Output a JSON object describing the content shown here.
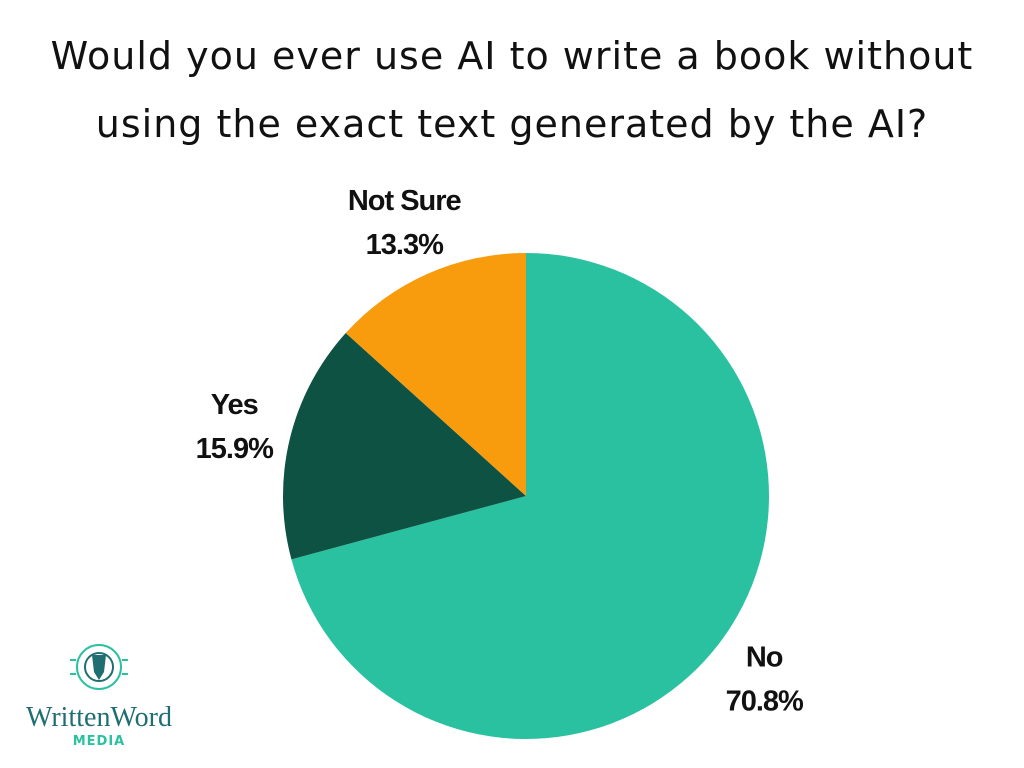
{
  "chart_data": {
    "type": "pie",
    "title": "Would you ever use AI to write a book without using the exact text generated by the AI?",
    "categories": [
      "No",
      "Yes",
      "Not Sure"
    ],
    "values": [
      70.8,
      15.9,
      13.3
    ],
    "value_labels": [
      "70.8%",
      "15.9%",
      "13.3%"
    ],
    "colors": [
      "#2ac1a0",
      "#0e5244",
      "#f89c0e"
    ],
    "start_angle": 0,
    "direction": "clockwise"
  },
  "logo": {
    "name": "WrittenWord",
    "subtitle": "MEDIA"
  }
}
